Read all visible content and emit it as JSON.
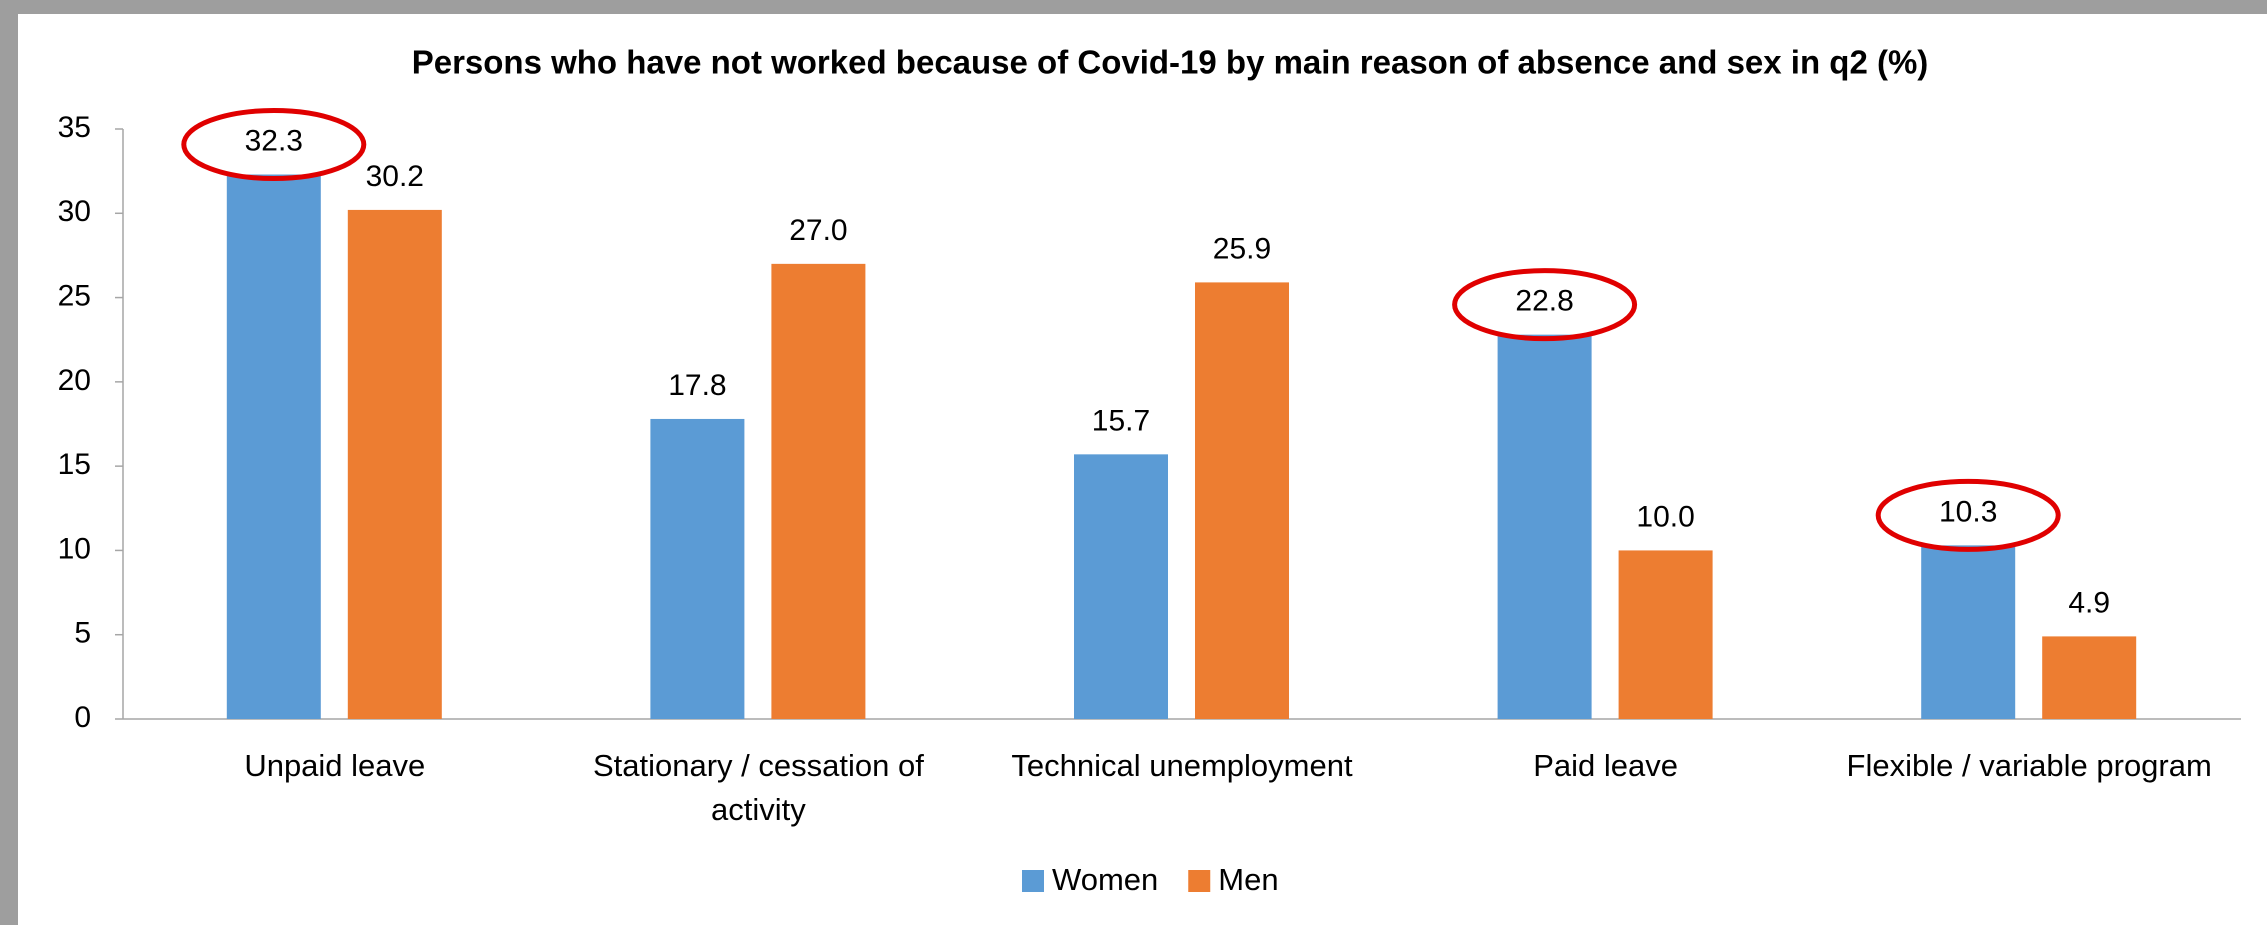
{
  "chart_data": {
    "type": "bar",
    "title": "Persons who have not worked because of Covid-19 by main reason of absence and sex in q2 (%)",
    "categories": [
      "Unpaid leave",
      "Stationary / cessation of activity",
      "Technical unemployment",
      "Paid leave",
      "Flexible / variable program"
    ],
    "series": [
      {
        "name": "Women",
        "color": "#5b9bd5",
        "values": [
          32.3,
          17.8,
          15.7,
          22.8,
          10.3
        ],
        "value_labels": [
          "32.3",
          "17.8",
          "15.7",
          "22.8",
          "10.3"
        ]
      },
      {
        "name": "Men",
        "color": "#ed7d31",
        "values": [
          30.2,
          27.0,
          25.9,
          10.0,
          4.9
        ],
        "value_labels": [
          "30.2",
          "27.0",
          "25.9",
          "10.0",
          "4.9"
        ]
      }
    ],
    "ylim": [
      0,
      35
    ],
    "yticks": [
      0,
      5,
      10,
      15,
      20,
      25,
      30,
      35
    ],
    "grid": false,
    "legend": "bottom"
  }
}
